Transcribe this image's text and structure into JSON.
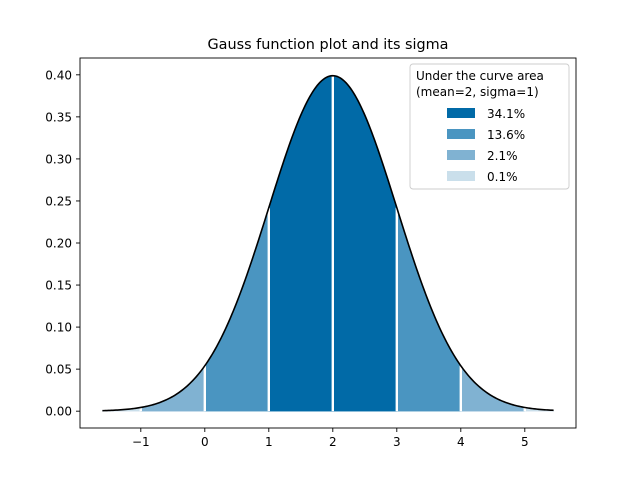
{
  "chart_data": {
    "type": "area",
    "title": "Gauss function plot and its sigma",
    "xlabel": "",
    "ylabel": "",
    "mean": 2,
    "sigma": 1,
    "curve_x_range": [
      -1.6,
      5.45
    ],
    "xlim": [
      -1.95,
      5.8
    ],
    "ylim": [
      -0.02,
      0.42
    ],
    "xticks": [
      -1,
      0,
      1,
      2,
      3,
      4,
      5
    ],
    "xtick_labels": [
      "−1",
      "0",
      "1",
      "2",
      "3",
      "4",
      "5"
    ],
    "yticks": [
      0.0,
      0.05,
      0.1,
      0.15,
      0.2,
      0.25,
      0.3,
      0.35,
      0.4
    ],
    "ytick_labels": [
      "0.00",
      "0.05",
      "0.10",
      "0.15",
      "0.20",
      "0.25",
      "0.30",
      "0.35",
      "0.40"
    ],
    "grid": false,
    "legend": {
      "title_lines": [
        "Under the curve area",
        "(mean=2, sigma=1)"
      ],
      "placement": "top-right",
      "entries": [
        {
          "label": "34.1%",
          "color": "#016aa7"
        },
        {
          "label": "13.6%",
          "color": "#4a95c1"
        },
        {
          "label": "2.1%",
          "color": "#80b2d2"
        },
        {
          "label": "0.1%",
          "color": "#cadfeb"
        }
      ]
    },
    "regions": [
      {
        "from": -1.6,
        "to": -1,
        "area_label": "0.1%",
        "color": "#cadfeb"
      },
      {
        "from": -1,
        "to": 0,
        "area_label": "2.1%",
        "color": "#80b2d2"
      },
      {
        "from": 0,
        "to": 1,
        "area_label": "13.6%",
        "color": "#4a95c1"
      },
      {
        "from": 1,
        "to": 2,
        "area_label": "34.1%",
        "color": "#016aa7"
      },
      {
        "from": 2,
        "to": 3,
        "area_label": "34.1%",
        "color": "#016aa7"
      },
      {
        "from": 3,
        "to": 4,
        "area_label": "13.6%",
        "color": "#4a95c1"
      },
      {
        "from": 4,
        "to": 5,
        "area_label": "2.1%",
        "color": "#80b2d2"
      },
      {
        "from": 5,
        "to": 5.45,
        "area_label": "0.1%",
        "color": "#cadfeb"
      }
    ],
    "curve_color": "#000000",
    "divider_color": "#ffffff"
  }
}
